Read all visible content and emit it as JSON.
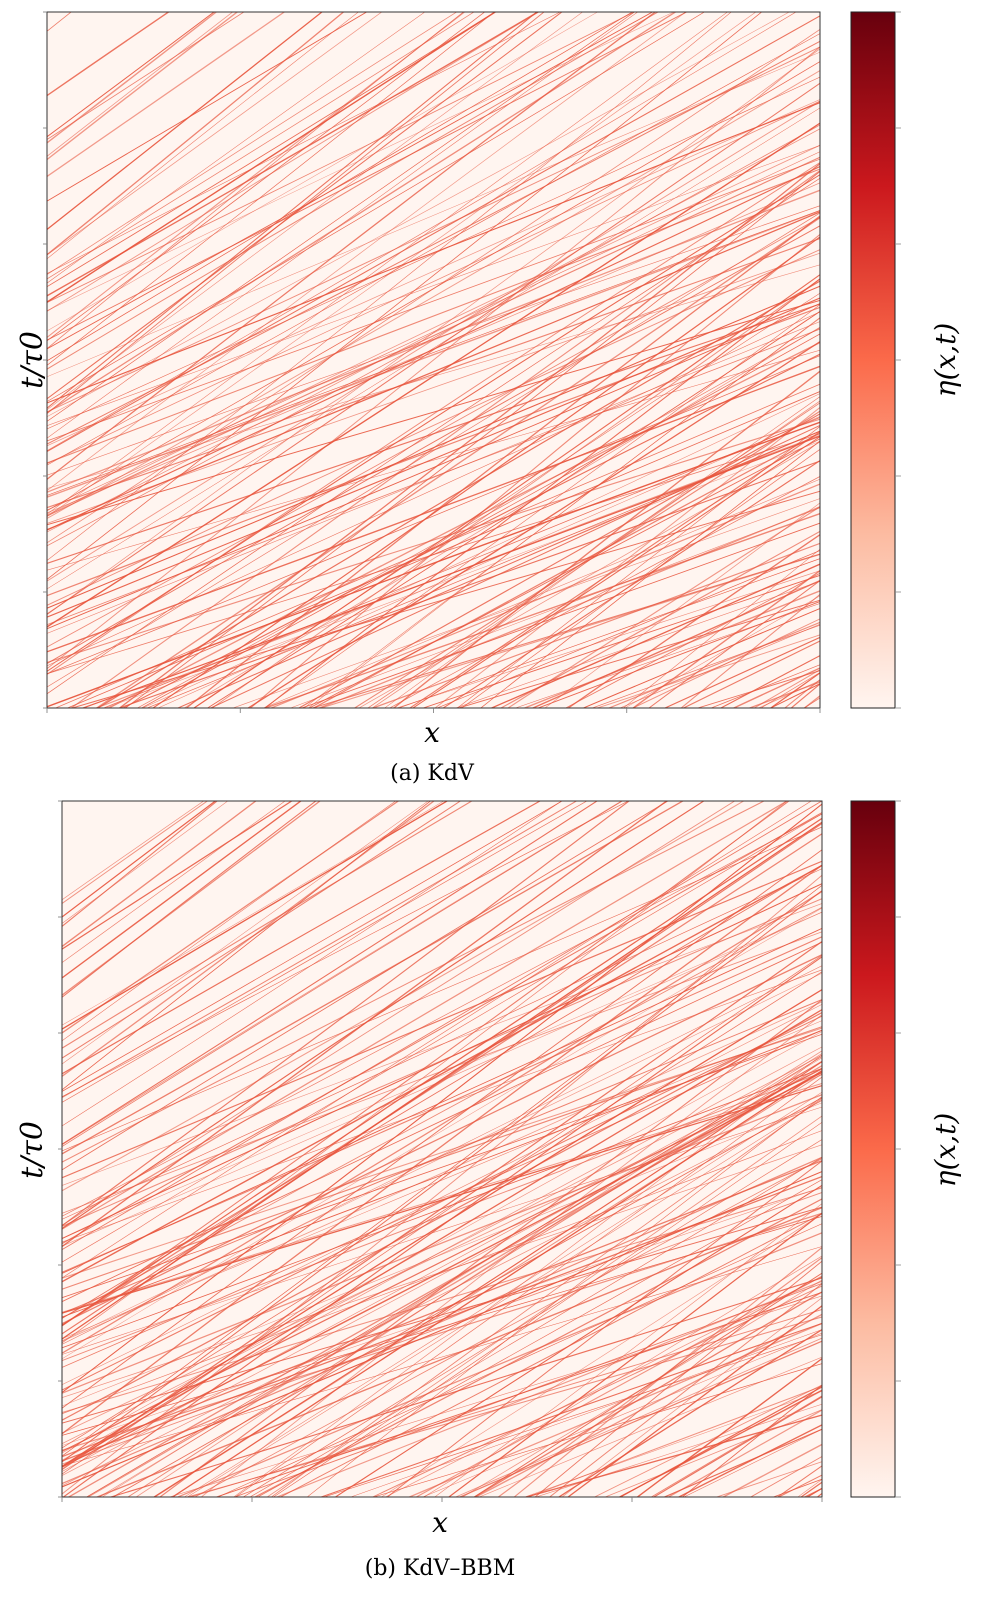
{
  "chart_data": [
    {
      "type": "heatmap",
      "caption": "(a) KdV",
      "xlabel": "x",
      "ylabel": "t/τ0",
      "colorbar_label": "η(x,t)",
      "colormap": "Reds",
      "colors": {
        "low": "#fff5f0",
        "mid": "#fb6a4a",
        "high": "#67000d",
        "line": "#e8553d"
      },
      "tick_labels_visible": false,
      "num_wave_lines": 260,
      "seed": 17
    },
    {
      "type": "heatmap",
      "caption": "(b) KdV–BBM",
      "xlabel": "x",
      "ylabel": "t/τ0",
      "colorbar_label": "η(x,t)",
      "colormap": "Reds",
      "colors": {
        "low": "#fff5f0",
        "mid": "#fb6a4a",
        "high": "#67000d",
        "line": "#e8553d"
      },
      "tick_labels_visible": false,
      "num_wave_lines": 260,
      "seed": 91
    }
  ]
}
